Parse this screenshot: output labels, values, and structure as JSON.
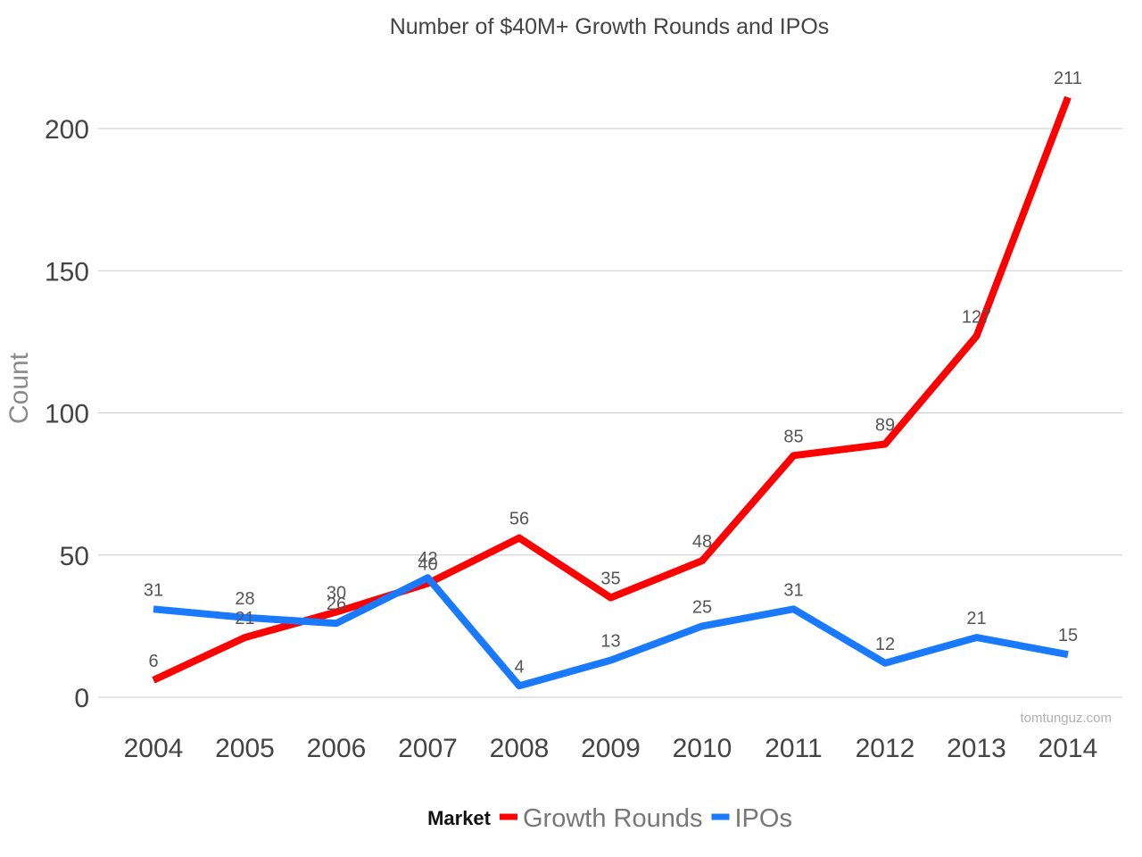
{
  "chart_data": {
    "type": "line",
    "title": "Number of $40M+ Growth Rounds and IPOs",
    "ylabel": "Count",
    "xlabel": "",
    "categories": [
      "2004",
      "2005",
      "2006",
      "2007",
      "2008",
      "2009",
      "2010",
      "2011",
      "2012",
      "2013",
      "2014"
    ],
    "ylim": [
      0,
      220
    ],
    "yticks": [
      0,
      50,
      100,
      150,
      200
    ],
    "grid": true,
    "legend": {
      "placement": "bottom-center",
      "title": "Market"
    },
    "series": [
      {
        "name": "Growth Rounds",
        "color": "#ff0000",
        "values": [
          6,
          21,
          30,
          40,
          56,
          35,
          48,
          85,
          89,
          127,
          211
        ]
      },
      {
        "name": "IPOs",
        "color": "#1a7aff",
        "values": [
          31,
          28,
          26,
          42,
          4,
          13,
          25,
          31,
          12,
          21,
          15
        ]
      }
    ],
    "watermark": "tomtunguz.com"
  }
}
